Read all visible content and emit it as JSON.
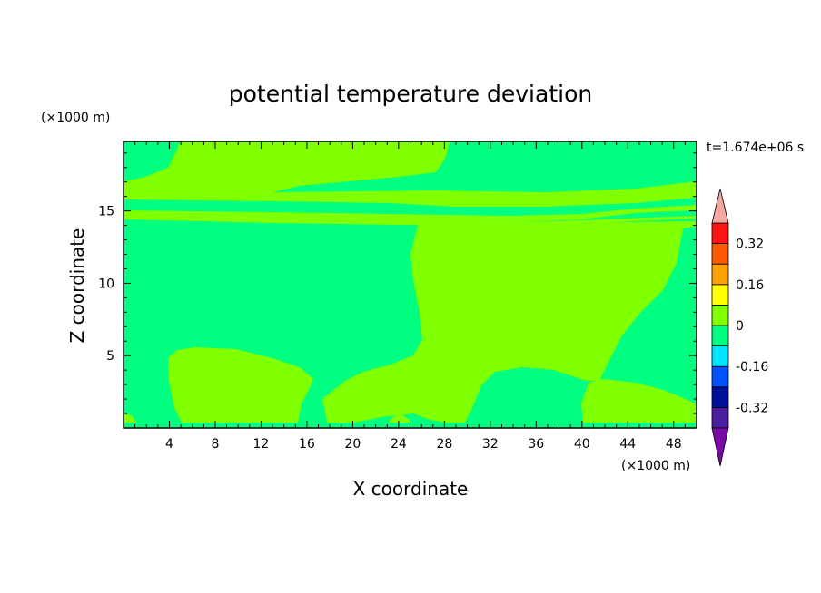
{
  "chart_data": {
    "type": "heatmap",
    "title": "potential temperature deviation",
    "xlabel": "X coordinate",
    "ylabel": "Z coordinate",
    "x_unit": "(×1000 m)",
    "y_unit": "(×1000 m)",
    "time_label": "t=1.674e+06 s",
    "xlim": [
      0,
      50
    ],
    "ylim": [
      0,
      19.8
    ],
    "x_ticks": [
      4,
      8,
      12,
      16,
      20,
      24,
      28,
      32,
      36,
      40,
      44,
      48
    ],
    "y_ticks": [
      5,
      10,
      15
    ],
    "colorbar": {
      "levels": [
        -0.4,
        -0.32,
        -0.24,
        -0.16,
        -0.08,
        0,
        0.08,
        0.16,
        0.24,
        0.32,
        0.4
      ],
      "labels": [
        "0.32",
        "0.16",
        "0",
        "-0.16",
        "-0.32"
      ],
      "label_values": [
        0.32,
        0.16,
        0,
        -0.16,
        -0.32
      ],
      "band_colors": [
        "#4b1fa0",
        "#00109c",
        "#0052ff",
        "#00e5ff",
        "#00ff80",
        "#80ff00",
        "#ffff00",
        "#ffa000",
        "#ff5a00",
        "#ff1414"
      ],
      "over_color": "#f4a6a0",
      "under_color": "#7a0aa8"
    },
    "fields": [
      {
        "class": "0 to 0.08",
        "color": "#80ff00"
      },
      {
        "class": "-0.08 to 0",
        "color": "#00ff80"
      }
    ]
  }
}
